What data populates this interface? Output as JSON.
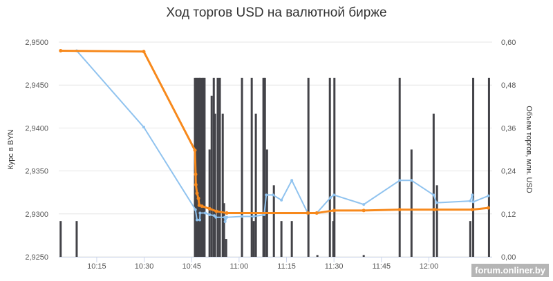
{
  "chart_data": {
    "type": "bar+line",
    "title": "Ход торгов USD на валютной бирже",
    "ylabel": "Курс в BYN",
    "y2label": "Объем торгов, млн. USD",
    "xlim": [
      "10:03",
      "12:20"
    ],
    "ylim": [
      2.925,
      2.95
    ],
    "y2lim": [
      0,
      0.6
    ],
    "x_ticks": [
      "10:15",
      "10:30",
      "10:45",
      "11:00",
      "11:15",
      "11:30",
      "11:45",
      "12:00"
    ],
    "y_ticks": [
      "2,9250",
      "2,9300",
      "2,9350",
      "2,9400",
      "2,9450",
      "2,9500"
    ],
    "y2_ticks": [
      "0,00",
      "0,12",
      "0,24",
      "0,36",
      "0,48",
      "0,60"
    ],
    "grid": true,
    "colors": {
      "volume": "#434348",
      "rate_light": "#90c3ef",
      "rate_orange": "#f7891c"
    },
    "volume": [
      [
        "10:03:36",
        0.1
      ],
      [
        "10:08:40",
        0.1
      ],
      [
        "10:46:03",
        0.5
      ],
      [
        "10:46:30",
        0.5
      ],
      [
        "10:46:55",
        0.5
      ],
      [
        "10:47:25",
        0.5
      ],
      [
        "10:47:40",
        0.5
      ],
      [
        "10:48:15",
        0.5
      ],
      [
        "10:48:40",
        0.5
      ],
      [
        "10:49:05",
        0.5
      ],
      [
        "10:50:40",
        0.3
      ],
      [
        "10:51:20",
        0.45
      ],
      [
        "10:52:00",
        0.5
      ],
      [
        "10:52:25",
        0.4
      ],
      [
        "10:53:15",
        0.5
      ],
      [
        "10:53:55",
        0.5
      ],
      [
        "10:54:50",
        0.4
      ],
      [
        "10:55:15",
        0.15
      ],
      [
        "10:55:55",
        0.05
      ],
      [
        "11:00:55",
        0.5
      ],
      [
        "11:04:00",
        0.5
      ],
      [
        "11:04:38",
        0.1
      ],
      [
        "11:05:18",
        0.4
      ],
      [
        "11:07:42",
        0.5
      ],
      [
        "11:08:10",
        0.5
      ],
      [
        "11:08:50",
        0.3
      ],
      [
        "11:11:00",
        0.2
      ],
      [
        "11:13:23",
        0.1
      ],
      [
        "11:16:40",
        0.1
      ],
      [
        "11:21:55",
        0.5
      ],
      [
        "11:24:45",
        0.005
      ],
      [
        "11:28:42",
        0.5
      ],
      [
        "11:29:47",
        0.1
      ],
      [
        "11:30:08",
        0.5
      ],
      [
        "11:39:24",
        0.005
      ],
      [
        "11:50:46",
        0.5
      ],
      [
        "11:54:30",
        0.3
      ],
      [
        "12:01:30",
        0.4
      ],
      [
        "12:02:33",
        0.2
      ],
      [
        "12:13:05",
        0.1
      ],
      [
        "12:14:00",
        0.5
      ],
      [
        "12:19:00",
        0.5
      ]
    ],
    "series": [
      {
        "values": [
          [
            "10:03:36",
            2.949
          ],
          [
            "10:08:40",
            2.949
          ],
          [
            "10:29:52",
            2.9401
          ],
          [
            "10:46:12",
            2.9305
          ],
          [
            "10:46:42",
            2.9293
          ],
          [
            "10:47:35",
            2.9293
          ],
          [
            "10:47:40",
            2.9301
          ],
          [
            "10:49:20",
            2.9301
          ],
          [
            "10:50:40",
            2.9299
          ],
          [
            "10:52:10",
            2.9298
          ],
          [
            "10:52:40",
            2.9296
          ],
          [
            "10:55:27",
            2.9296
          ],
          [
            "10:55:35",
            2.9291
          ],
          [
            "10:56:07",
            2.9296
          ],
          [
            "11:00:55",
            2.9297
          ],
          [
            "11:04:38",
            2.9297
          ],
          [
            "11:07:55",
            2.9299
          ],
          [
            "11:08:35",
            2.9322
          ],
          [
            "11:10:45",
            2.9322
          ],
          [
            "11:13:23",
            2.9316
          ],
          [
            "11:16:40",
            2.9339
          ],
          [
            "11:21:42",
            2.9301
          ],
          [
            "11:24:32",
            2.9301
          ],
          [
            "11:28:55",
            2.9319
          ],
          [
            "11:30:00",
            2.9322
          ],
          [
            "11:39:24",
            2.9311
          ],
          [
            "11:50:46",
            2.9339
          ],
          [
            "11:54:30",
            2.9339
          ],
          [
            "12:01:30",
            2.9322
          ],
          [
            "12:02:24",
            2.9313
          ],
          [
            "12:13:05",
            2.9315
          ],
          [
            "12:13:44",
            2.9322
          ],
          [
            "12:14:00",
            2.9314
          ],
          [
            "12:18:48",
            2.9321
          ]
        ]
      },
      {
        "values": [
          [
            "10:03:36",
            2.949
          ],
          [
            "10:29:52",
            2.9489
          ],
          [
            "10:46:03",
            2.9374
          ],
          [
            "10:46:16",
            2.9346
          ],
          [
            "10:46:20",
            2.9334
          ],
          [
            "10:46:42",
            2.9324
          ],
          [
            "10:47:09",
            2.9318
          ],
          [
            "10:47:25",
            2.931
          ],
          [
            "10:48:15",
            2.9309
          ],
          [
            "10:50:40",
            2.9306
          ],
          [
            "10:52:50",
            2.9303
          ],
          [
            "10:56:07",
            2.9301
          ],
          [
            "11:21:42",
            2.9301
          ],
          [
            "11:24:32",
            2.9301
          ],
          [
            "11:30:00",
            2.9304
          ],
          [
            "11:39:24",
            2.9304
          ],
          [
            "11:50:46",
            2.9305
          ],
          [
            "12:01:43",
            2.9305
          ],
          [
            "12:13:44",
            2.9305
          ],
          [
            "12:18:48",
            2.9307
          ]
        ]
      }
    ]
  },
  "watermark": "forum.onliner.by"
}
